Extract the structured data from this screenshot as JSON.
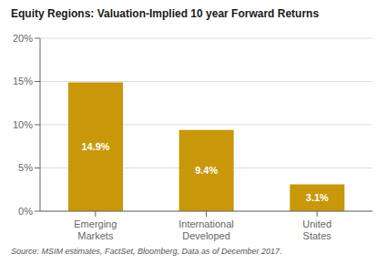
{
  "chart_data": {
    "type": "bar",
    "title": "Equity Regions: Valuation-Implied 10 year Forward Returns",
    "categories": [
      "Emerging\nMarkets",
      "International\nDeveloped",
      "United\nStates"
    ],
    "values": [
      14.9,
      9.4,
      3.1
    ],
    "value_labels": [
      "14.9%",
      "9.4%",
      "3.1%"
    ],
    "data_labels": true,
    "color": "#C8980A",
    "ylim": [
      0,
      20
    ],
    "yticks": [
      {
        "value": 0,
        "label": "0%"
      },
      {
        "value": 5,
        "label": "5%"
      },
      {
        "value": 10,
        "label": "10%"
      },
      {
        "value": 15,
        "label": "15%"
      },
      {
        "value": 20,
        "label": "20%"
      }
    ],
    "grid": true,
    "annotations": [
      "Source: MSIM estimates, FactSet, Bloomberg, Data as of December 2017."
    ]
  }
}
